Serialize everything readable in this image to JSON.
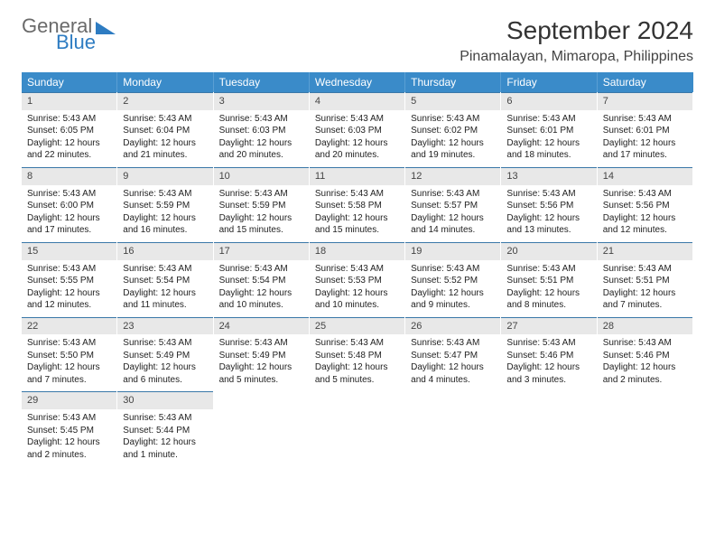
{
  "brand": {
    "word1": "General",
    "word2": "Blue"
  },
  "title": "September 2024",
  "location": "Pinamalayan, Mimaropa, Philippines",
  "colors": {
    "header_bg": "#3a8bc9",
    "header_text": "#ffffff",
    "daynum_bg": "#e8e8e8",
    "daynum_border": "#3a78a8",
    "text": "#222222",
    "logo_gray": "#6a6a6a",
    "logo_blue": "#2e7cc2",
    "background": "#ffffff"
  },
  "dow": [
    "Sunday",
    "Monday",
    "Tuesday",
    "Wednesday",
    "Thursday",
    "Friday",
    "Saturday"
  ],
  "weeks": [
    [
      {
        "n": "1",
        "sr": "5:43 AM",
        "ss": "6:05 PM",
        "dl": "12 hours and 22 minutes."
      },
      {
        "n": "2",
        "sr": "5:43 AM",
        "ss": "6:04 PM",
        "dl": "12 hours and 21 minutes."
      },
      {
        "n": "3",
        "sr": "5:43 AM",
        "ss": "6:03 PM",
        "dl": "12 hours and 20 minutes."
      },
      {
        "n": "4",
        "sr": "5:43 AM",
        "ss": "6:03 PM",
        "dl": "12 hours and 20 minutes."
      },
      {
        "n": "5",
        "sr": "5:43 AM",
        "ss": "6:02 PM",
        "dl": "12 hours and 19 minutes."
      },
      {
        "n": "6",
        "sr": "5:43 AM",
        "ss": "6:01 PM",
        "dl": "12 hours and 18 minutes."
      },
      {
        "n": "7",
        "sr": "5:43 AM",
        "ss": "6:01 PM",
        "dl": "12 hours and 17 minutes."
      }
    ],
    [
      {
        "n": "8",
        "sr": "5:43 AM",
        "ss": "6:00 PM",
        "dl": "12 hours and 17 minutes."
      },
      {
        "n": "9",
        "sr": "5:43 AM",
        "ss": "5:59 PM",
        "dl": "12 hours and 16 minutes."
      },
      {
        "n": "10",
        "sr": "5:43 AM",
        "ss": "5:59 PM",
        "dl": "12 hours and 15 minutes."
      },
      {
        "n": "11",
        "sr": "5:43 AM",
        "ss": "5:58 PM",
        "dl": "12 hours and 15 minutes."
      },
      {
        "n": "12",
        "sr": "5:43 AM",
        "ss": "5:57 PM",
        "dl": "12 hours and 14 minutes."
      },
      {
        "n": "13",
        "sr": "5:43 AM",
        "ss": "5:56 PM",
        "dl": "12 hours and 13 minutes."
      },
      {
        "n": "14",
        "sr": "5:43 AM",
        "ss": "5:56 PM",
        "dl": "12 hours and 12 minutes."
      }
    ],
    [
      {
        "n": "15",
        "sr": "5:43 AM",
        "ss": "5:55 PM",
        "dl": "12 hours and 12 minutes."
      },
      {
        "n": "16",
        "sr": "5:43 AM",
        "ss": "5:54 PM",
        "dl": "12 hours and 11 minutes."
      },
      {
        "n": "17",
        "sr": "5:43 AM",
        "ss": "5:54 PM",
        "dl": "12 hours and 10 minutes."
      },
      {
        "n": "18",
        "sr": "5:43 AM",
        "ss": "5:53 PM",
        "dl": "12 hours and 10 minutes."
      },
      {
        "n": "19",
        "sr": "5:43 AM",
        "ss": "5:52 PM",
        "dl": "12 hours and 9 minutes."
      },
      {
        "n": "20",
        "sr": "5:43 AM",
        "ss": "5:51 PM",
        "dl": "12 hours and 8 minutes."
      },
      {
        "n": "21",
        "sr": "5:43 AM",
        "ss": "5:51 PM",
        "dl": "12 hours and 7 minutes."
      }
    ],
    [
      {
        "n": "22",
        "sr": "5:43 AM",
        "ss": "5:50 PM",
        "dl": "12 hours and 7 minutes."
      },
      {
        "n": "23",
        "sr": "5:43 AM",
        "ss": "5:49 PM",
        "dl": "12 hours and 6 minutes."
      },
      {
        "n": "24",
        "sr": "5:43 AM",
        "ss": "5:49 PM",
        "dl": "12 hours and 5 minutes."
      },
      {
        "n": "25",
        "sr": "5:43 AM",
        "ss": "5:48 PM",
        "dl": "12 hours and 5 minutes."
      },
      {
        "n": "26",
        "sr": "5:43 AM",
        "ss": "5:47 PM",
        "dl": "12 hours and 4 minutes."
      },
      {
        "n": "27",
        "sr": "5:43 AM",
        "ss": "5:46 PM",
        "dl": "12 hours and 3 minutes."
      },
      {
        "n": "28",
        "sr": "5:43 AM",
        "ss": "5:46 PM",
        "dl": "12 hours and 2 minutes."
      }
    ],
    [
      {
        "n": "29",
        "sr": "5:43 AM",
        "ss": "5:45 PM",
        "dl": "12 hours and 2 minutes."
      },
      {
        "n": "30",
        "sr": "5:43 AM",
        "ss": "5:44 PM",
        "dl": "12 hours and 1 minute."
      },
      null,
      null,
      null,
      null,
      null
    ]
  ],
  "labels": {
    "sunrise": "Sunrise:",
    "sunset": "Sunset:",
    "daylight": "Daylight:"
  }
}
